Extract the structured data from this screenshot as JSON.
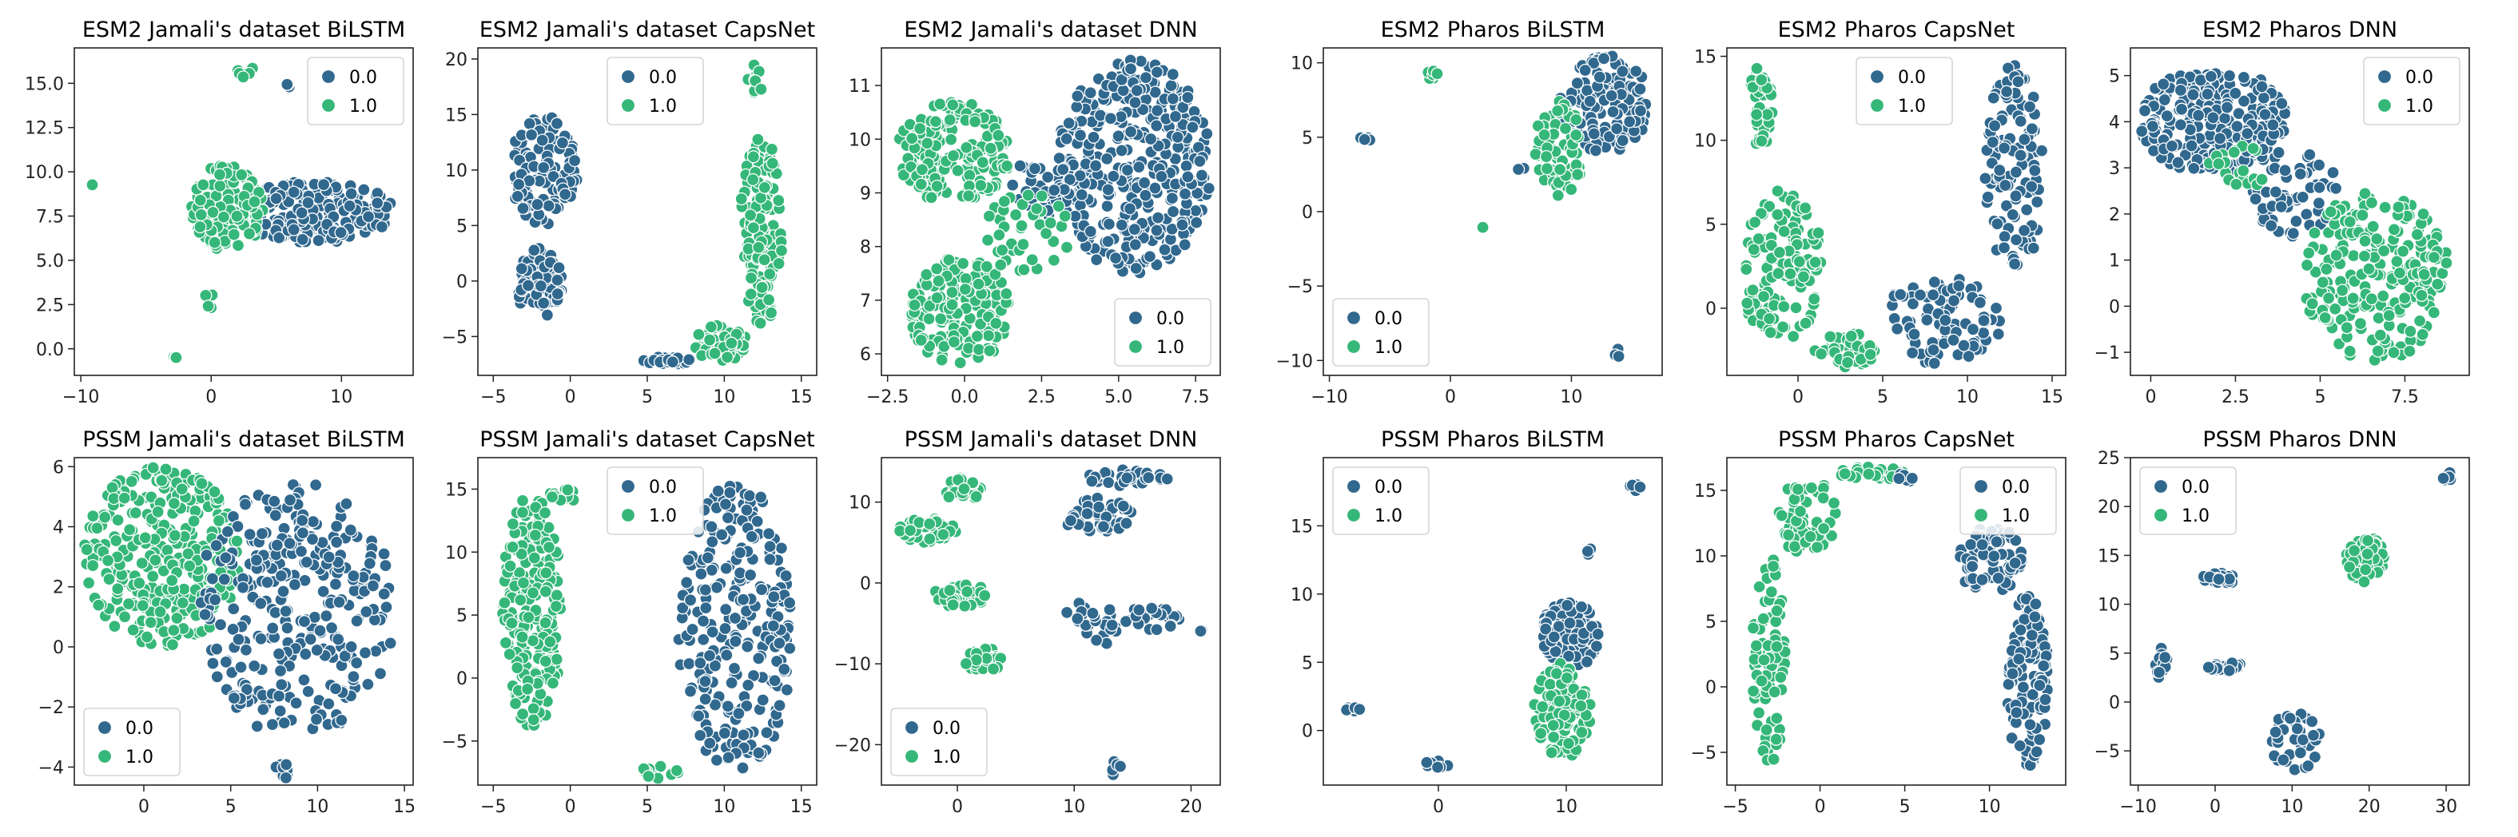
{
  "figure": {
    "colors": {
      "class0": "#31688e",
      "class1": "#35b779",
      "edge": "#ffffff",
      "axis": "#222222"
    },
    "legend_entries": [
      "0.0",
      "1.0"
    ]
  },
  "chart_data": [
    {
      "type": "scatter",
      "title": "ESM2 Jamali's dataset BiLSTM",
      "xlabel": "",
      "ylabel": "",
      "xlim": [
        -10.5,
        15.5
      ],
      "ylim": [
        -1.5,
        17
      ],
      "xticks": [
        -10,
        0,
        10
      ],
      "yticks": [
        0.0,
        2.5,
        5.0,
        7.5,
        10.0,
        12.5,
        15.0
      ],
      "ytick_labels": [
        "0.0",
        "2.5",
        "5.0",
        "7.5",
        "10.0",
        "12.5",
        "15.0"
      ],
      "legend": "top-right",
      "clusters": [
        {
          "label": "0.0",
          "x": [
            2,
            14
          ],
          "y": [
            6,
            9.5
          ],
          "n": 220
        },
        {
          "label": "1.0",
          "x": [
            -1.5,
            4
          ],
          "y": [
            5.5,
            10.5
          ],
          "n": 160
        },
        {
          "label": "1.0",
          "x": [
            2,
            3.5
          ],
          "y": [
            15.2,
            16.3
          ],
          "n": 6
        },
        {
          "label": "0.0",
          "x": [
            5.5,
            6.5
          ],
          "y": [
            14.8,
            15.1
          ],
          "n": 3
        },
        {
          "label": "1.0",
          "x": [
            -3,
            -2.5
          ],
          "y": [
            -0.8,
            -0.2
          ],
          "n": 4
        },
        {
          "label": "1.0",
          "x": [
            -0.5,
            0.2
          ],
          "y": [
            2,
            3.5
          ],
          "n": 4
        },
        {
          "label": "1.0",
          "x": [
            -9.3,
            -9.1
          ],
          "y": [
            9.2,
            9.3
          ],
          "n": 1
        }
      ]
    },
    {
      "type": "scatter",
      "title": "ESM2 Jamali's dataset CapsNet",
      "xlabel": "",
      "ylabel": "",
      "xlim": [
        -6,
        16
      ],
      "ylim": [
        -8.5,
        21
      ],
      "xticks": [
        -5,
        0,
        5,
        10,
        15
      ],
      "yticks": [
        -5,
        0,
        5,
        10,
        15,
        20
      ],
      "ytick_labels": [
        "−5",
        "0",
        "5",
        "10",
        "15",
        "20"
      ],
      "legend": "top-center",
      "clusters": [
        {
          "label": "0.0",
          "x": [
            -4,
            0.5
          ],
          "y": [
            5,
            15
          ],
          "n": 120
        },
        {
          "label": "0.0",
          "x": [
            -3.5,
            -0.5
          ],
          "y": [
            -3.5,
            3
          ],
          "n": 80
        },
        {
          "label": "0.0",
          "x": [
            4.5,
            8
          ],
          "y": [
            -7.5,
            -6.8
          ],
          "n": 25
        },
        {
          "label": "1.0",
          "x": [
            8,
            11.5
          ],
          "y": [
            -7.2,
            -4
          ],
          "n": 60
        },
        {
          "label": "1.0",
          "x": [
            11,
            13.8
          ],
          "y": [
            -4,
            13
          ],
          "n": 140
        },
        {
          "label": "1.0",
          "x": [
            11.5,
            12.5
          ],
          "y": [
            16.5,
            19.5
          ],
          "n": 10
        }
      ]
    },
    {
      "type": "scatter",
      "title": "ESM2 Jamali's dataset DNN",
      "xlabel": "",
      "ylabel": "",
      "xlim": [
        -2.7,
        8.3
      ],
      "ylim": [
        5.6,
        11.7
      ],
      "xticks": [
        -2.5,
        0.0,
        2.5,
        5.0,
        7.5
      ],
      "yticks": [
        6,
        7,
        8,
        9,
        10,
        11
      ],
      "xtick_labels": [
        "−2.5",
        "0.0",
        "2.5",
        "5.0",
        "7.5"
      ],
      "legend": "bottom-right",
      "clusters": [
        {
          "label": "0.0",
          "x": [
            3,
            8
          ],
          "y": [
            7.5,
            11.5
          ],
          "n": 380
        },
        {
          "label": "0.0",
          "x": [
            1.5,
            3.5
          ],
          "y": [
            8.5,
            9.8
          ],
          "n": 40
        },
        {
          "label": "1.0",
          "x": [
            -2.2,
            1.5
          ],
          "y": [
            8.8,
            10.7
          ],
          "n": 180
        },
        {
          "label": "1.0",
          "x": [
            -1.8,
            1.5
          ],
          "y": [
            5.8,
            7.8
          ],
          "n": 170
        },
        {
          "label": "1.0",
          "x": [
            0.5,
            3.5
          ],
          "y": [
            7.5,
            9
          ],
          "n": 40
        }
      ]
    },
    {
      "type": "scatter",
      "title": "ESM2 Pharos BiLSTM",
      "xlabel": "",
      "ylabel": "",
      "xlim": [
        -10.5,
        17.5
      ],
      "ylim": [
        -11,
        11
      ],
      "xticks": [
        -10,
        0,
        10
      ],
      "yticks": [
        -10,
        -5,
        0,
        5,
        10
      ],
      "ytick_labels": [
        "−10",
        "−5",
        "0",
        "5",
        "10"
      ],
      "legend": "bottom-left",
      "clusters": [
        {
          "label": "0.0",
          "x": [
            9,
            16.5
          ],
          "y": [
            4,
            10.5
          ],
          "n": 130
        },
        {
          "label": "1.0",
          "x": [
            7,
            11
          ],
          "y": [
            1,
            7.5
          ],
          "n": 70
        },
        {
          "label": "0.0",
          "x": [
            -7.8,
            -6.5
          ],
          "y": [
            4.6,
            5
          ],
          "n": 6
        },
        {
          "label": "1.0",
          "x": [
            -2,
            -1
          ],
          "y": [
            8.5,
            9.5
          ],
          "n": 8
        },
        {
          "label": "0.0",
          "x": [
            13.5,
            14.5
          ],
          "y": [
            -10,
            -9
          ],
          "n": 3
        },
        {
          "label": "1.0",
          "x": [
            2.5,
            3
          ],
          "y": [
            -1.5,
            -1
          ],
          "n": 1
        },
        {
          "label": "0.0",
          "x": [
            5.5,
            6.2
          ],
          "y": [
            2.5,
            3.2
          ],
          "n": 2
        }
      ]
    },
    {
      "type": "scatter",
      "title": "ESM2 Pharos CapsNet",
      "xlabel": "",
      "ylabel": "",
      "xlim": [
        -4.2,
        15.8
      ],
      "ylim": [
        -4,
        15.5
      ],
      "xticks": [
        0,
        5,
        10,
        15
      ],
      "yticks": [
        0,
        5,
        10,
        15
      ],
      "legend": "top-center",
      "clusters": [
        {
          "label": "1.0",
          "x": [
            -3,
            -1.5
          ],
          "y": [
            9.5,
            14.5
          ],
          "n": 40
        },
        {
          "label": "1.0",
          "x": [
            -3.5,
            1.5
          ],
          "y": [
            -2,
            7
          ],
          "n": 130
        },
        {
          "label": "1.0",
          "x": [
            1,
            5
          ],
          "y": [
            -3.5,
            -1.5
          ],
          "n": 50
        },
        {
          "label": "0.0",
          "x": [
            5,
            12
          ],
          "y": [
            -3.5,
            2
          ],
          "n": 90
        },
        {
          "label": "0.0",
          "x": [
            11,
            14.5
          ],
          "y": [
            2,
            14.5
          ],
          "n": 120
        }
      ]
    },
    {
      "type": "scatter",
      "title": "ESM2 Pharos DNN",
      "xlabel": "",
      "ylabel": "",
      "xlim": [
        -0.6,
        9.4
      ],
      "ylim": [
        -1.5,
        5.6
      ],
      "xticks": [
        0.0,
        2.5,
        5.0,
        7.5
      ],
      "yticks": [
        -1,
        0,
        1,
        2,
        3,
        4,
        5
      ],
      "ytick_labels": [
        "−1",
        "0",
        "1",
        "2",
        "3",
        "4",
        "5"
      ],
      "legend": "top-right",
      "clusters": [
        {
          "label": "0.0",
          "x": [
            -0.3,
            4
          ],
          "y": [
            2.8,
            5.2
          ],
          "n": 260
        },
        {
          "label": "0.0",
          "x": [
            3,
            5.5
          ],
          "y": [
            1.5,
            3.5
          ],
          "n": 60
        },
        {
          "label": "1.0",
          "x": [
            4.5,
            8.8
          ],
          "y": [
            -1.2,
            2.5
          ],
          "n": 230
        },
        {
          "label": "1.0",
          "x": [
            1.5,
            3.5
          ],
          "y": [
            2.5,
            3.5
          ],
          "n": 20
        }
      ]
    },
    {
      "type": "scatter",
      "title": "PSSM Jamali's dataset BiLSTM",
      "xlabel": "",
      "ylabel": "",
      "xlim": [
        -4,
        15.5
      ],
      "ylim": [
        -4.6,
        6.3
      ],
      "xticks": [
        0,
        5,
        10,
        15
      ],
      "yticks": [
        -4,
        -2,
        0,
        2,
        4,
        6
      ],
      "ytick_labels": [
        "−4",
        "−2",
        "0",
        "2",
        "4",
        "6"
      ],
      "legend": "bottom-left",
      "clusters": [
        {
          "label": "1.0",
          "x": [
            -3.5,
            5.5
          ],
          "y": [
            0,
            6
          ],
          "n": 300
        },
        {
          "label": "0.0",
          "x": [
            3,
            14.5
          ],
          "y": [
            -3,
            5.5
          ],
          "n": 300
        },
        {
          "label": "0.0",
          "x": [
            7.5,
            8.5
          ],
          "y": [
            -4.4,
            -3.4
          ],
          "n": 10
        }
      ]
    },
    {
      "type": "scatter",
      "title": "PSSM Jamali's dataset CapsNet",
      "xlabel": "",
      "ylabel": "",
      "xlim": [
        -6,
        16
      ],
      "ylim": [
        -8.5,
        17.5
      ],
      "xticks": [
        -5,
        0,
        5,
        10,
        15
      ],
      "yticks": [
        -5,
        0,
        5,
        10,
        15
      ],
      "ytick_labels": [
        "−5",
        "0",
        "5",
        "10",
        "15"
      ],
      "legend": "top-center",
      "clusters": [
        {
          "label": "1.0",
          "x": [
            -4.5,
            -0.5
          ],
          "y": [
            -4,
            14.5
          ],
          "n": 220
        },
        {
          "label": "1.0",
          "x": [
            -1.5,
            1
          ],
          "y": [
            14,
            15
          ],
          "n": 15
        },
        {
          "label": "1.0",
          "x": [
            4.5,
            7
          ],
          "y": [
            -8,
            -7
          ],
          "n": 15
        },
        {
          "label": "0.0",
          "x": [
            7,
            14.5
          ],
          "y": [
            -7.5,
            15.5
          ],
          "n": 260
        }
      ]
    },
    {
      "type": "scatter",
      "title": "PSSM Jamali's dataset DNN",
      "xlabel": "",
      "ylabel": "",
      "xlim": [
        -6.5,
        22.5
      ],
      "ylim": [
        -25,
        15.5
      ],
      "xticks": [
        0,
        10,
        20
      ],
      "yticks": [
        -20,
        -10,
        0,
        10
      ],
      "ytick_labels": [
        "−20",
        "−10",
        "0",
        "10"
      ],
      "legend": "bottom-left",
      "clusters": [
        {
          "label": "1.0",
          "x": [
            -5,
            0
          ],
          "y": [
            5,
            8
          ],
          "n": 45
        },
        {
          "label": "1.0",
          "x": [
            -1,
            2
          ],
          "y": [
            10,
            13
          ],
          "n": 25
        },
        {
          "label": "1.0",
          "x": [
            -2,
            3
          ],
          "y": [
            -3,
            0
          ],
          "n": 30
        },
        {
          "label": "1.0",
          "x": [
            0.5,
            4
          ],
          "y": [
            -11,
            -8
          ],
          "n": 30
        },
        {
          "label": "0.0",
          "x": [
            11,
            18
          ],
          "y": [
            12,
            14
          ],
          "n": 35
        },
        {
          "label": "0.0",
          "x": [
            9,
            15
          ],
          "y": [
            6,
            10.5
          ],
          "n": 45
        },
        {
          "label": "0.0",
          "x": [
            9,
            14
          ],
          "y": [
            -8,
            -2
          ],
          "n": 25
        },
        {
          "label": "0.0",
          "x": [
            14,
            19
          ],
          "y": [
            -6,
            -3
          ],
          "n": 25
        },
        {
          "label": "0.0",
          "x": [
            13,
            14
          ],
          "y": [
            -24,
            -22
          ],
          "n": 5
        },
        {
          "label": "0.0",
          "x": [
            20,
            21
          ],
          "y": [
            -6.5,
            -5.5
          ],
          "n": 2
        }
      ]
    },
    {
      "type": "scatter",
      "title": "PSSM Pharos BiLSTM",
      "xlabel": "",
      "ylabel": "",
      "xlim": [
        -9,
        17.5
      ],
      "ylim": [
        -4,
        20
      ],
      "xticks": [
        0,
        10
      ],
      "yticks": [
        0,
        5,
        10,
        15
      ],
      "legend": "top-left",
      "clusters": [
        {
          "label": "0.0",
          "x": [
            8,
            12.5
          ],
          "y": [
            4.5,
            9.5
          ],
          "n": 150
        },
        {
          "label": "1.0",
          "x": [
            7.5,
            12
          ],
          "y": [
            -2,
            5
          ],
          "n": 110
        },
        {
          "label": "0.0",
          "x": [
            -7.5,
            -6
          ],
          "y": [
            1.4,
            1.8
          ],
          "n": 6
        },
        {
          "label": "0.0",
          "x": [
            -1,
            1
          ],
          "y": [
            -2.8,
            -2
          ],
          "n": 8
        },
        {
          "label": "0.0",
          "x": [
            15,
            16.5
          ],
          "y": [
            17.5,
            18.3
          ],
          "n": 5
        },
        {
          "label": "0.0",
          "x": [
            11.5,
            12
          ],
          "y": [
            12.8,
            13.4
          ],
          "n": 3
        }
      ]
    },
    {
      "type": "scatter",
      "title": "PSSM Pharos CapsNet",
      "xlabel": "",
      "ylabel": "",
      "xlim": [
        -5.5,
        14.5
      ],
      "ylim": [
        -7.5,
        17.5
      ],
      "xticks": [
        -5,
        0,
        5,
        10
      ],
      "yticks": [
        -5,
        0,
        5,
        10,
        15
      ],
      "ytick_labels": [
        "−5",
        "0",
        "5",
        "10",
        "15"
      ],
      "legend": "top-right",
      "clusters": [
        {
          "label": "1.0",
          "x": [
            -4,
            -2
          ],
          "y": [
            -6,
            10
          ],
          "n": 90
        },
        {
          "label": "1.0",
          "x": [
            -2.5,
            1
          ],
          "y": [
            10,
            16
          ],
          "n": 60
        },
        {
          "label": "1.0",
          "x": [
            1,
            5
          ],
          "y": [
            15.8,
            16.8
          ],
          "n": 40
        },
        {
          "label": "0.0",
          "x": [
            8,
            12
          ],
          "y": [
            7,
            12.5
          ],
          "n": 70
        },
        {
          "label": "0.0",
          "x": [
            11,
            13.5
          ],
          "y": [
            -6.5,
            7
          ],
          "n": 130
        },
        {
          "label": "0.0",
          "x": [
            4.5,
            5.5
          ],
          "y": [
            15.5,
            16.3
          ],
          "n": 6
        }
      ]
    },
    {
      "type": "scatter",
      "title": "PSSM Pharos DNN",
      "xlabel": "",
      "ylabel": "",
      "xlim": [
        -11,
        33
      ],
      "ylim": [
        -8.5,
        25
      ],
      "xticks": [
        -10,
        0,
        10,
        20,
        30
      ],
      "yticks": [
        -5,
        0,
        5,
        10,
        15,
        20,
        25
      ],
      "xtick_labels": [
        "−10",
        "0",
        "10",
        "20",
        "30"
      ],
      "ytick_labels": [
        "−5",
        "0",
        "5",
        "10",
        "15",
        "20",
        "25"
      ],
      "legend": "top-left",
      "clusters": [
        {
          "label": "1.0",
          "x": [
            17,
            22
          ],
          "y": [
            12,
            17
          ],
          "n": 80
        },
        {
          "label": "0.0",
          "x": [
            -2,
            3
          ],
          "y": [
            12,
            13.2
          ],
          "n": 25
        },
        {
          "label": "0.0",
          "x": [
            -1.5,
            5
          ],
          "y": [
            3.2,
            4
          ],
          "n": 30
        },
        {
          "label": "0.0",
          "x": [
            -8,
            -6
          ],
          "y": [
            2,
            5.5
          ],
          "n": 12
        },
        {
          "label": "0.0",
          "x": [
            7,
            14
          ],
          "y": [
            -7,
            -1
          ],
          "n": 35
        },
        {
          "label": "0.0",
          "x": [
            29.5,
            31
          ],
          "y": [
            22.5,
            23.5
          ],
          "n": 5
        }
      ]
    }
  ]
}
